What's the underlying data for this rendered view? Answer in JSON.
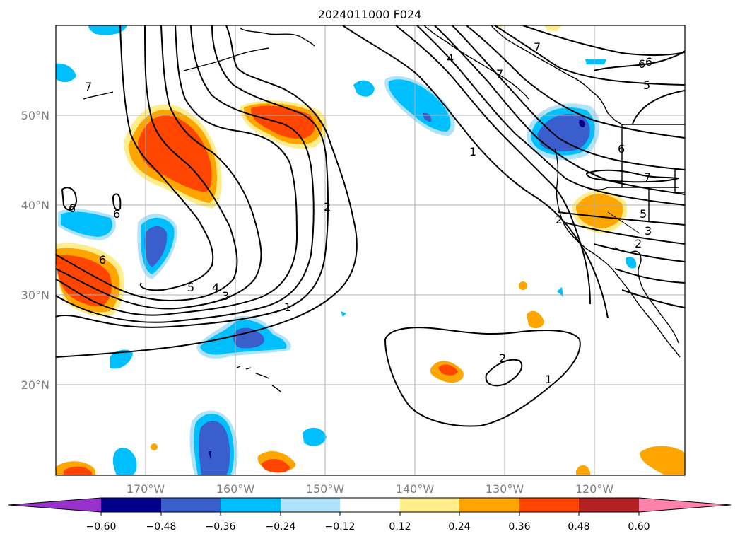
{
  "title": "2024011000 F024",
  "map": {
    "lon_labels": [
      "170°W",
      "160°W",
      "150°W",
      "140°W",
      "130°W",
      "120°W"
    ],
    "lat_labels": [
      "50°N",
      "40°N",
      "30°N",
      "20°N"
    ],
    "contour_labels": [
      "7",
      "7",
      "6",
      "6",
      "6",
      "6",
      "5",
      "4",
      "3",
      "2",
      "1",
      "1",
      "2",
      "1",
      "6",
      "7",
      "5",
      "3",
      "2",
      "2",
      "4",
      "7",
      "6",
      "5"
    ]
  },
  "colorbar": {
    "ticks": [
      "−0.60",
      "−0.48",
      "−0.36",
      "−0.24",
      "−0.12",
      "0.12",
      "0.24",
      "0.36",
      "0.48",
      "0.60"
    ],
    "colors": [
      "#9932cc",
      "#00008b",
      "#3a5fcd",
      "#00bfff",
      "#afe3fb",
      "#ffffff",
      "#ffec8b",
      "#ffa500",
      "#ff4500",
      "#b22222",
      "#ff82ab"
    ]
  }
}
